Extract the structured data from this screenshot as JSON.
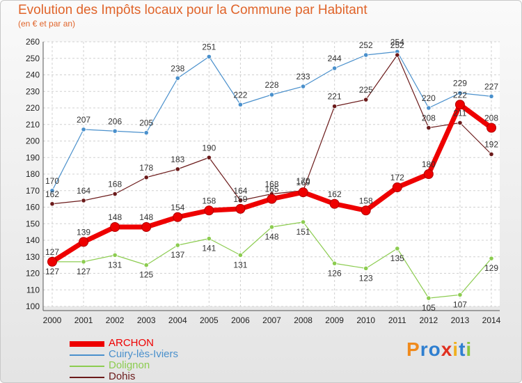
{
  "header": {
    "title": "Evolution des Impôts locaux pour la Commune par Habitant",
    "subtitle": "(en € et par an)"
  },
  "brand": {
    "letters": [
      {
        "ch": "P",
        "color": "#f08a1c"
      },
      {
        "ch": "r",
        "color": "#2f7fd0"
      },
      {
        "ch": "o",
        "color": "#2f7fd0"
      },
      {
        "ch": "x",
        "color": "#e03020"
      },
      {
        "ch": "i",
        "color": "#f0b020"
      },
      {
        "ch": "t",
        "color": "#2f7fd0"
      },
      {
        "ch": "i",
        "color": "#8cc63f"
      }
    ]
  },
  "chart_data": {
    "type": "line",
    "title": "Evolution des Impôts locaux pour la Commune par Habitant",
    "subtitle": "(en € et par an)",
    "x": [
      "2000",
      "2001",
      "2002",
      "2003",
      "2004",
      "2005",
      "2006",
      "2007",
      "2008",
      "2009",
      "2010",
      "2011",
      "2012",
      "2013",
      "2014"
    ],
    "ylim": [
      100,
      260
    ],
    "yticks": [
      100,
      110,
      120,
      130,
      140,
      150,
      160,
      170,
      180,
      190,
      200,
      210,
      220,
      230,
      240,
      250,
      260
    ],
    "grid": true,
    "legend_position": "bottom-left",
    "series": [
      {
        "name": "ARCHON",
        "color": "#ee0000",
        "values": [
          127,
          139,
          148,
          148,
          154,
          158,
          159,
          165,
          169,
          162,
          158,
          172,
          180,
          222,
          208
        ]
      },
      {
        "name": "Cuiry-lès-Iviers",
        "color": "#4a90cc",
        "values": [
          170,
          207,
          206,
          205,
          238,
          251,
          222,
          228,
          233,
          244,
          252,
          254,
          220,
          229,
          227
        ]
      },
      {
        "name": "Dolignon",
        "color": "#8ccc50",
        "values": [
          127,
          127,
          131,
          125,
          137,
          141,
          131,
          148,
          151,
          126,
          123,
          135,
          105,
          107,
          129
        ]
      },
      {
        "name": "Dohis",
        "color": "#6b1a1a",
        "values": [
          162,
          164,
          168,
          178,
          183,
          190,
          164,
          168,
          170,
          221,
          225,
          252,
          208,
          211,
          192
        ]
      }
    ]
  }
}
